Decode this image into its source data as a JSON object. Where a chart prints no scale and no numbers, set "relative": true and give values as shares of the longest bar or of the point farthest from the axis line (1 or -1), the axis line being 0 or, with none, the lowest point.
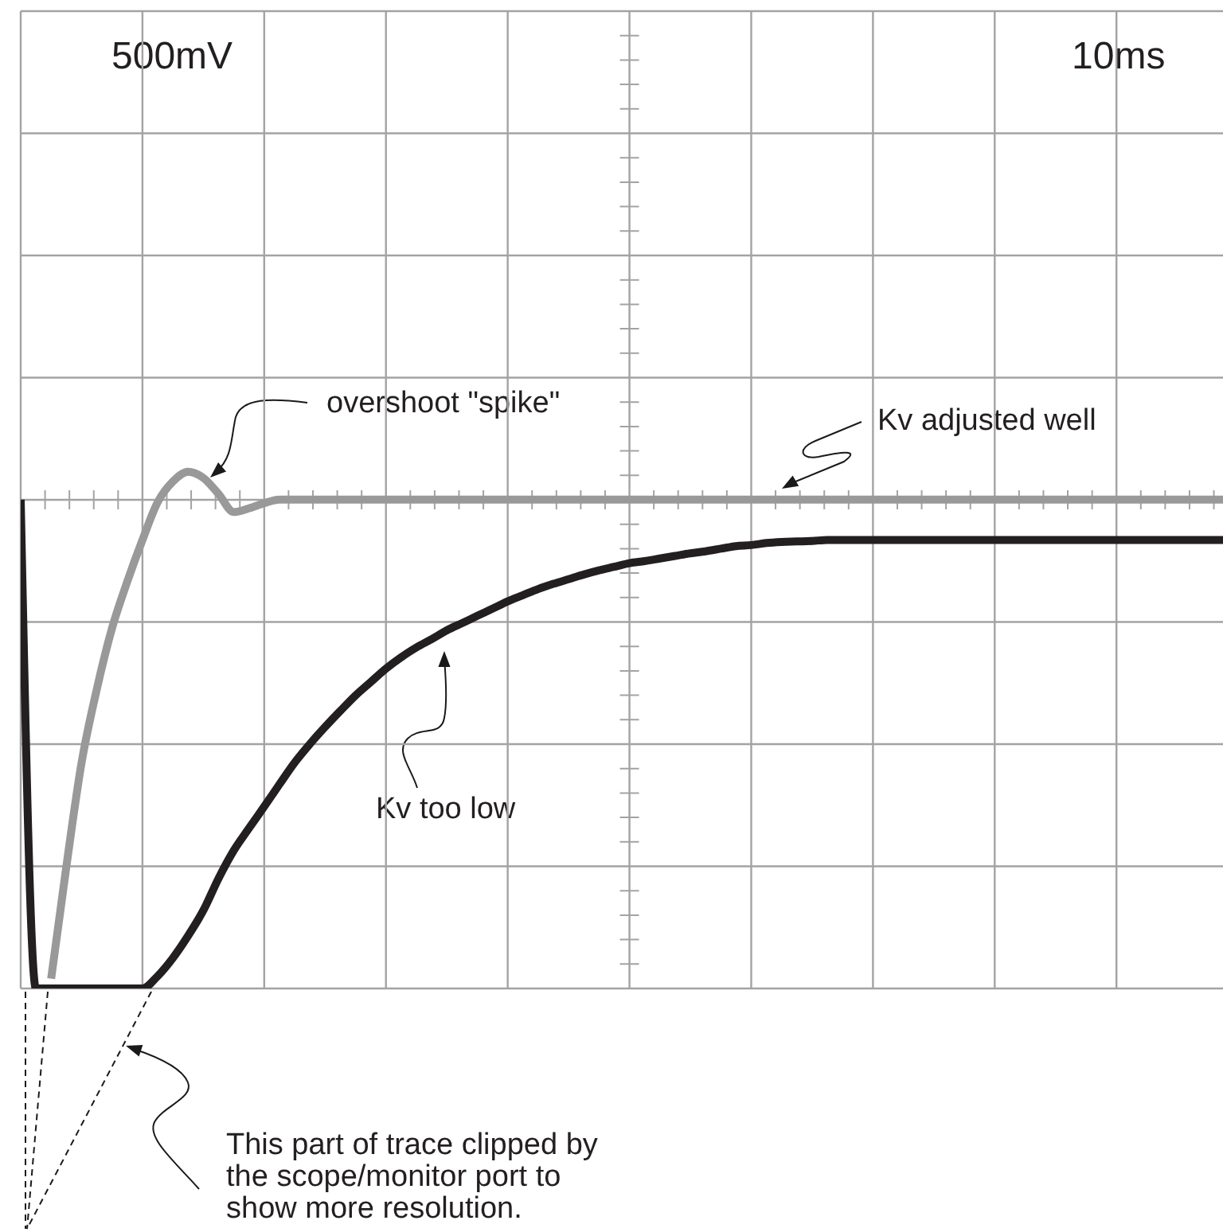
{
  "chart_data": {
    "type": "line",
    "relative": true,
    "grid": true,
    "tick_labels": false,
    "categories": [
      null,
      null,
      null,
      null,
      null,
      null,
      null,
      null,
      null,
      null,
      null,
      null,
      null,
      null,
      null,
      null,
      null,
      null,
      null,
      null,
      null,
      null,
      null,
      null,
      null,
      null,
      null,
      null,
      null,
      null,
      null,
      null,
      null,
      null,
      null,
      null,
      null,
      null,
      null,
      null,
      null,
      null,
      null,
      null,
      null,
      null,
      null,
      null,
      null,
      null,
      null,
      null,
      null,
      null,
      null,
      null,
      null,
      null,
      null,
      null,
      null,
      null,
      null,
      null,
      null,
      null,
      null,
      null,
      null,
      null,
      null,
      null,
      null,
      null,
      null,
      null,
      null,
      null,
      null,
      null
    ],
    "series": [
      {
        "name": "Kv adjusted well",
        "color": "#999999",
        "values": [
          null,
          null,
          0.019,
          0.236,
          0.437,
          0.579,
          0.697,
          0.787,
          0.868,
          0.941,
          0.981,
          1.0,
          0.988,
          0.957,
          0.922,
          0.929,
          0.939,
          0.946,
          0.946,
          0.946,
          0.946,
          0.946,
          0.946,
          0.946,
          0.946,
          0.946,
          0.946,
          0.946,
          0.946,
          0.946,
          0.946,
          0.946,
          0.946,
          0.946,
          0.946,
          0.946,
          0.946,
          0.946,
          0.946,
          0.946,
          0.946,
          0.946,
          0.946,
          0.946,
          0.946,
          0.946,
          0.946,
          0.946,
          0.946,
          0.946,
          0.946,
          0.946,
          0.946,
          0.946,
          0.946,
          0.946,
          0.946,
          0.946,
          0.946,
          0.946,
          0.946,
          0.946,
          0.946,
          0.946,
          0.946,
          0.946,
          0.946,
          0.946,
          0.946,
          0.946,
          0.946,
          0.946,
          0.946,
          0.946,
          0.946,
          0.946,
          0.946,
          0.946,
          0.946,
          0.946
        ]
      },
      {
        "name": "Kv too low",
        "color": "#231f20",
        "values": [
          0.946,
          0,
          0,
          0,
          0,
          0,
          0,
          0,
          0,
          0.024,
          0.059,
          0.102,
          0.151,
          0.213,
          0.267,
          0.31,
          0.352,
          0.395,
          0.437,
          0.473,
          0.506,
          0.537,
          0.567,
          0.593,
          0.619,
          0.641,
          0.66,
          0.676,
          0.693,
          0.707,
          0.721,
          0.735,
          0.749,
          0.761,
          0.773,
          0.783,
          0.792,
          0.801,
          0.809,
          0.816,
          0.823,
          0.827,
          0.832,
          0.837,
          0.842,
          0.846,
          0.851,
          0.856,
          0.858,
          0.862,
          0.864,
          0.865,
          0.866,
          0.868,
          0.868,
          0.868,
          0.868,
          0.868,
          0.868,
          0.868,
          0.868,
          0.868,
          0.868,
          0.868,
          0.868,
          0.868,
          0.868,
          0.868,
          0.868,
          0.868,
          0.868,
          0.868,
          0.868,
          0.868,
          0.868,
          0.868,
          0.868,
          0.868,
          0.868,
          0.868
        ]
      }
    ],
    "annotations": [
      "500mV",
      "10ms",
      "overshoot \"spike\"",
      "This part of trace clipped by the scope/monitor port to show more resolution."
    ]
  }
}
